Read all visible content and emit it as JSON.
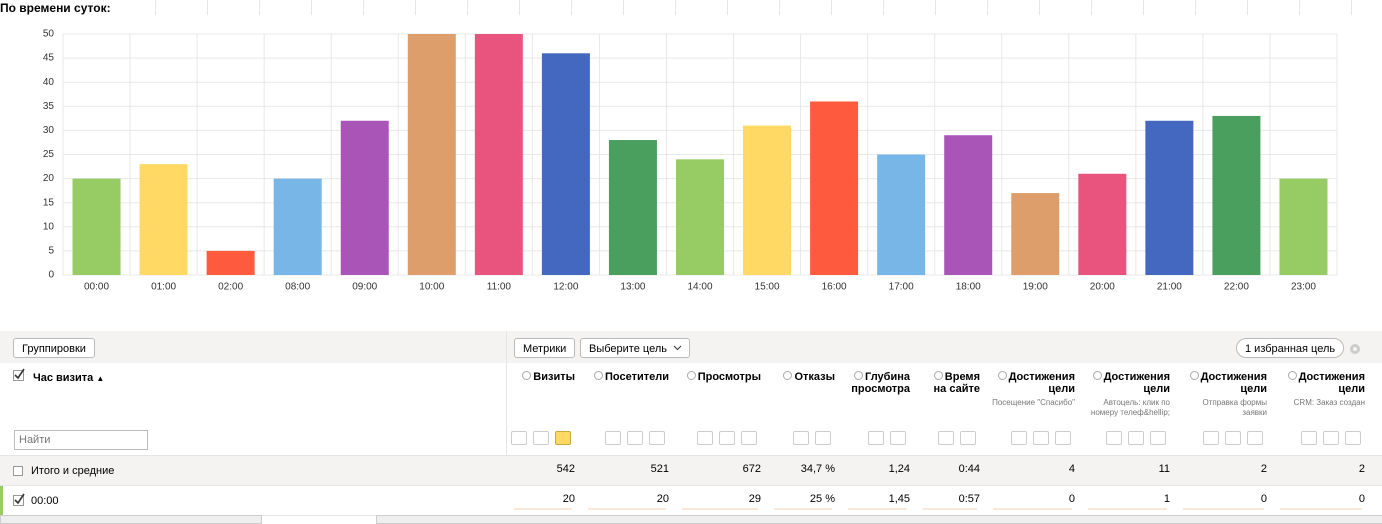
{
  "header": {
    "title": "По времени суток:"
  },
  "chart_data": {
    "type": "bar",
    "categories": [
      "00:00",
      "01:00",
      "02:00",
      "08:00",
      "09:00",
      "10:00",
      "11:00",
      "12:00",
      "13:00",
      "14:00",
      "15:00",
      "16:00",
      "17:00",
      "18:00",
      "19:00",
      "20:00",
      "21:00",
      "22:00",
      "23:00"
    ],
    "values": [
      20,
      23,
      5,
      20,
      32,
      50,
      50,
      46,
      28,
      24,
      31,
      36,
      25,
      29,
      17,
      21,
      32,
      33,
      20
    ],
    "colors": [
      "#97cc64",
      "#ffd963",
      "#fd5a3e",
      "#77b6e7",
      "#a955b8",
      "#dd9e6b",
      "#e9547f",
      "#4468c0",
      "#4a9f5e",
      "#97cc64",
      "#ffd963",
      "#fd5a3e",
      "#77b6e7",
      "#a955b8",
      "#dd9e6b",
      "#e9547f",
      "#4468c0",
      "#4a9f5e",
      "#97cc64"
    ],
    "ylim": [
      0,
      50
    ],
    "yticks": [
      0,
      5,
      10,
      15,
      20,
      25,
      30,
      35,
      40,
      45,
      50
    ],
    "grid": true
  },
  "toolbar": {
    "groupings": "Группировки",
    "metrics": "Метрики",
    "goal_select": "Выберите цель",
    "favorites": "1 избранная цель"
  },
  "table": {
    "dimension": "Час визита",
    "sort_mark": "▲",
    "search_placeholder": "Найти",
    "columns": [
      {
        "title": "Визиты"
      },
      {
        "title": "Посетители"
      },
      {
        "title": "Просмотры"
      },
      {
        "title": "Отказы"
      },
      {
        "title": "Глубина просмотра"
      },
      {
        "title": "Время на сайте"
      },
      {
        "title": "Достижения цели",
        "subtitle": "Посещение \"Спасибо\""
      },
      {
        "title": "Достижения цели",
        "subtitle": "Автоцель: клик по номеру телеф&hellip;"
      },
      {
        "title": "Достижения цели",
        "subtitle": "Отправка формы заявки"
      },
      {
        "title": "Достижения цели",
        "subtitle": "CRM: Заказ создан"
      }
    ],
    "rows": [
      {
        "label": "Итого и средние",
        "cells": [
          "542",
          "521",
          "672",
          "34,7 %",
          "1,24",
          "0:44",
          "4",
          "11",
          "2",
          "2"
        ]
      },
      {
        "label": "00:00",
        "cells": [
          "20",
          "20",
          "29",
          "25 %",
          "1,45",
          "0:57",
          "0",
          "1",
          "0",
          "0"
        ]
      }
    ]
  }
}
